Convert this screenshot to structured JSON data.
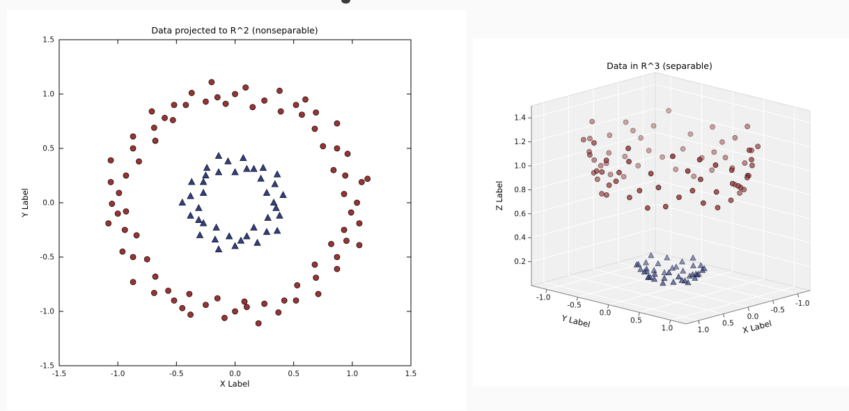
{
  "chart_data": {
    "charts": [
      {
        "type": "scatter",
        "title": "Data projected to R^2 (nonseparable)",
        "xlabel": "X Label",
        "ylabel": "Y Label",
        "xlim": [
          -1.5,
          1.5
        ],
        "ylim": [
          -1.5,
          1.5
        ],
        "xticks": [
          "-1.5",
          "-1.0",
          "-0.5",
          "0.0",
          "0.5",
          "1.0",
          "1.5"
        ],
        "yticks": [
          "-1.5",
          "-1.0",
          "-0.5",
          "0.0",
          "0.5",
          "1.0",
          "1.5"
        ],
        "grid": false,
        "legend": false,
        "series_refs": [
          "outer",
          "inner"
        ]
      },
      {
        "type": "scatter3d",
        "title": "Data in R^3 (separable)",
        "xlabel": "X Label",
        "ylabel": "Y Label",
        "zlabel": "Z Label",
        "xlim": [
          -1.25,
          1.25
        ],
        "ylim": [
          -1.25,
          1.25
        ],
        "zlim": [
          0,
          1.5
        ],
        "xticks": [
          "1.0",
          "0.5",
          "0.0",
          "-0.5",
          "-1.0"
        ],
        "yticks": [
          "-1.0",
          "-0.5",
          "0.0",
          "0.5",
          "1.0"
        ],
        "zticks": [
          "0.2",
          "0.4",
          "0.6",
          "0.8",
          "1.0",
          "1.2",
          "1.4"
        ],
        "pane_color": "#f0f0f0",
        "grid_color": "#ffffff",
        "depthshade": true,
        "series_refs": [
          "outer",
          "inner"
        ]
      }
    ],
    "series": {
      "outer": {
        "name": "outer ring class (red circles)",
        "marker": "circle",
        "face": "#973434",
        "edge": "#1c0606",
        "points": [
          [
            1.04,
            0.0,
            1.08
          ],
          [
            0.93,
            0.08,
            0.87
          ],
          [
            1.08,
            0.19,
            1.2
          ],
          [
            0.94,
            0.25,
            0.95
          ],
          [
            0.84,
            0.3,
            0.8
          ],
          [
            0.96,
            0.45,
            1.12
          ],
          [
            0.87,
            0.5,
            1.0
          ],
          [
            0.75,
            0.52,
            0.83
          ],
          [
            0.87,
            0.73,
            1.29
          ],
          [
            0.68,
            0.68,
            0.92
          ],
          [
            0.69,
            0.83,
            1.16
          ],
          [
            0.57,
            0.81,
            0.98
          ],
          [
            0.52,
            0.9,
            1.08
          ],
          [
            0.39,
            0.84,
            0.86
          ],
          [
            0.38,
            1.03,
            1.2
          ],
          [
            0.25,
            0.94,
            0.95
          ],
          [
            0.15,
            0.88,
            0.8
          ],
          [
            0.09,
            1.06,
            1.13
          ],
          [
            0.0,
            1.0,
            1.0
          ],
          [
            -0.08,
            0.91,
            0.84
          ],
          [
            -0.2,
            1.11,
            1.27
          ],
          [
            -0.25,
            0.93,
            0.93
          ],
          [
            -0.37,
            1.01,
            1.16
          ],
          [
            -0.42,
            0.9,
            0.99
          ],
          [
            -0.52,
            0.9,
            1.08
          ],
          [
            -0.53,
            0.76,
            0.86
          ],
          [
            -0.71,
            0.84,
            1.21
          ],
          [
            -0.69,
            0.69,
            0.95
          ],
          [
            -0.68,
            0.57,
            0.79
          ],
          [
            -0.87,
            0.61,
            1.13
          ],
          [
            -0.87,
            0.5,
            1.01
          ],
          [
            -0.82,
            0.38,
            0.82
          ],
          [
            -1.06,
            0.39,
            1.28
          ],
          [
            -0.93,
            0.25,
            0.93
          ],
          [
            -1.06,
            0.19,
            1.16
          ],
          [
            -0.99,
            0.09,
            0.99
          ],
          [
            -1.05,
            -0.01,
            1.1
          ],
          [
            -0.93,
            -0.08,
            0.87
          ],
          [
            -1.08,
            -0.19,
            1.2
          ],
          [
            -0.94,
            -0.25,
            0.95
          ],
          [
            -0.84,
            -0.3,
            0.8
          ],
          [
            -0.96,
            -0.45,
            1.12
          ],
          [
            -0.87,
            -0.5,
            1.0
          ],
          [
            -0.75,
            -0.52,
            0.84
          ],
          [
            -0.87,
            -0.73,
            1.29
          ],
          [
            -0.68,
            -0.68,
            0.93
          ],
          [
            -0.69,
            -0.83,
            1.17
          ],
          [
            -0.57,
            -0.81,
            0.98
          ],
          [
            -0.52,
            -0.9,
            1.08
          ],
          [
            -0.39,
            -0.84,
            0.87
          ],
          [
            -0.38,
            -1.03,
            1.21
          ],
          [
            -0.25,
            -0.94,
            0.95
          ],
          [
            -0.15,
            -0.88,
            0.8
          ],
          [
            -0.09,
            -1.06,
            1.13
          ],
          [
            0.0,
            -1.0,
            1.0
          ],
          [
            0.08,
            -0.91,
            0.84
          ],
          [
            0.2,
            -1.11,
            1.27
          ],
          [
            0.25,
            -0.93,
            0.93
          ],
          [
            0.37,
            -1.01,
            1.16
          ],
          [
            0.42,
            -0.9,
            1.0
          ],
          [
            0.52,
            -0.9,
            1.08
          ],
          [
            0.53,
            -0.76,
            0.87
          ],
          [
            0.71,
            -0.84,
            1.21
          ],
          [
            0.69,
            -0.69,
            0.95
          ],
          [
            0.68,
            -0.57,
            0.79
          ],
          [
            0.87,
            -0.61,
            1.13
          ],
          [
            0.87,
            -0.5,
            1.01
          ],
          [
            0.82,
            -0.38,
            0.82
          ],
          [
            1.06,
            -0.39,
            1.28
          ],
          [
            0.93,
            -0.25,
            0.93
          ],
          [
            1.06,
            -0.19,
            1.16
          ],
          [
            0.99,
            -0.09,
            0.99
          ],
          [
            1.13,
            0.22,
            1.32
          ],
          [
            0.6,
            0.95,
            1.26
          ],
          [
            -0.15,
            0.97,
            0.96
          ],
          [
            -0.6,
            0.78,
            0.97
          ],
          [
            -1.0,
            -0.1,
            1.01
          ],
          [
            -0.45,
            -0.97,
            1.14
          ],
          [
            0.1,
            -0.96,
            0.93
          ],
          [
            0.95,
            -0.35,
            1.03
          ]
        ]
      },
      "inner": {
        "name": "inner cluster class (blue triangles)",
        "marker": "triangle",
        "face": "#333f7e",
        "edge": "#11152e",
        "points": [
          [
            0.33,
            0.0,
            0.11
          ],
          [
            0.41,
            0.07,
            0.17
          ],
          [
            0.27,
            0.09,
            0.08
          ],
          [
            0.34,
            0.17,
            0.14
          ],
          [
            0.36,
            0.26,
            0.2
          ],
          [
            0.22,
            0.22,
            0.1
          ],
          [
            0.24,
            0.32,
            0.16
          ],
          [
            0.16,
            0.31,
            0.12
          ],
          [
            0.1,
            0.31,
            0.11
          ],
          [
            0.07,
            0.41,
            0.17
          ],
          [
            0.0,
            0.28,
            0.08
          ],
          [
            -0.06,
            0.38,
            0.15
          ],
          [
            -0.14,
            0.43,
            0.2
          ],
          [
            -0.14,
            0.28,
            0.1
          ],
          [
            -0.24,
            0.32,
            0.16
          ],
          [
            -0.25,
            0.25,
            0.12
          ],
          [
            -0.27,
            0.19,
            0.11
          ],
          [
            -0.37,
            0.19,
            0.17
          ],
          [
            -0.27,
            0.09,
            0.08
          ],
          [
            -0.38,
            0.06,
            0.15
          ],
          [
            -0.45,
            0.0,
            0.2
          ],
          [
            -0.31,
            -0.05,
            0.1
          ],
          [
            -0.38,
            -0.12,
            0.16
          ],
          [
            -0.31,
            -0.16,
            0.12
          ],
          [
            -0.27,
            -0.19,
            0.11
          ],
          [
            -0.3,
            -0.3,
            0.18
          ],
          [
            -0.16,
            -0.23,
            0.08
          ],
          [
            -0.17,
            -0.34,
            0.14
          ],
          [
            -0.14,
            -0.43,
            0.2
          ],
          [
            -0.05,
            -0.31,
            0.1
          ],
          [
            0.0,
            -0.4,
            0.16
          ],
          [
            0.05,
            -0.35,
            0.12
          ],
          [
            0.1,
            -0.31,
            0.11
          ],
          [
            0.19,
            -0.37,
            0.17
          ],
          [
            0.16,
            -0.23,
            0.08
          ],
          [
            0.27,
            -0.27,
            0.15
          ],
          [
            0.36,
            -0.26,
            0.2
          ],
          [
            0.28,
            -0.14,
            0.1
          ],
          [
            0.38,
            -0.12,
            0.16
          ],
          [
            0.35,
            -0.05,
            0.12
          ]
        ]
      }
    }
  }
}
